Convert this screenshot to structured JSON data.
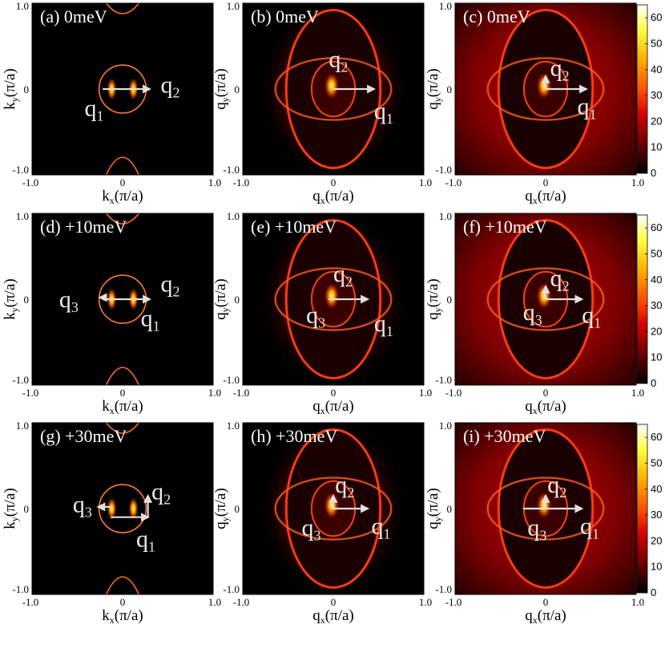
{
  "figure": {
    "colorbar": {
      "ticks": [
        "0",
        "10",
        "20",
        "30",
        "40",
        "50",
        "60"
      ],
      "range": [
        0,
        65
      ],
      "colormap": [
        "#000000",
        "#6b0000",
        "#d40000",
        "#ff5a00",
        "#ffb000",
        "#ffff40",
        "#ffffff"
      ]
    },
    "panels": [
      {
        "id": "a",
        "title": "(a) 0meV",
        "kind": "k",
        "xlabel": "k",
        "xsub": "x",
        "ylabel": "k",
        "ysub": "y",
        "unit": "(π/a)",
        "xticks": [
          "-1.0",
          "0",
          "1.0"
        ],
        "yticks": [
          "1.0",
          "0",
          "-1.0"
        ],
        "arrows": [
          {
            "from": [
              -0.22,
              0.0
            ],
            "to": [
              0.3,
              0.0
            ]
          }
        ],
        "qlabels": [
          {
            "q": "q",
            "sub": "1",
            "at": [
              -0.42,
              -0.22
            ]
          },
          {
            "q": "q",
            "sub": "2",
            "at": [
              0.42,
              0.05
            ]
          }
        ]
      },
      {
        "id": "b",
        "title": "(b) 0meV",
        "kind": "q",
        "xlabel": "q",
        "xsub": "x",
        "ylabel": "q",
        "ysub": "y",
        "unit": "(π/a)",
        "xticks": [
          "-1.0",
          "0",
          "1.0"
        ],
        "yticks": [
          "1.0",
          "0",
          "-1.0"
        ],
        "arrows": [
          {
            "from": [
              0.0,
              0.0
            ],
            "to": [
              0.45,
              0.0
            ]
          }
        ],
        "qlabels": [
          {
            "q": "q",
            "sub": "2",
            "at": [
              -0.05,
              0.35
            ]
          },
          {
            "q": "q",
            "sub": "1",
            "at": [
              0.45,
              -0.25
            ]
          }
        ]
      },
      {
        "id": "c",
        "title": "(c) 0meV",
        "kind": "q",
        "xlabel": "q",
        "xsub": "x",
        "ylabel": "q",
        "ysub": "y",
        "unit": "(π/a)",
        "xticks": [
          "-1.0",
          "0",
          "1.0"
        ],
        "yticks": [
          "1.0",
          "0",
          "-1.0"
        ],
        "arrows": [
          {
            "from": [
              0.0,
              0.0
            ],
            "to": [
              0.45,
              0.0
            ]
          },
          {
            "from": [
              0.0,
              0.0
            ],
            "to": [
              0.0,
              0.15
            ]
          }
        ],
        "qlabels": [
          {
            "q": "q",
            "sub": "2",
            "at": [
              0.05,
              0.25
            ]
          },
          {
            "q": "q",
            "sub": "1",
            "at": [
              0.35,
              -0.2
            ]
          }
        ]
      },
      {
        "id": "d",
        "title": "(d) +10meV",
        "kind": "k",
        "xlabel": "k",
        "xsub": "x",
        "ylabel": "k",
        "ysub": "y",
        "unit": "(π/a)",
        "xticks": [
          "-1.0",
          "0",
          "1.0"
        ],
        "yticks": [
          "1.0",
          "0",
          "-1.0"
        ],
        "arrows": [
          {
            "from": [
              -0.22,
              0.0
            ],
            "to": [
              0.3,
              0.0
            ]
          },
          {
            "from": [
              -0.18,
              0.02
            ],
            "to": [
              -0.25,
              0.02
            ]
          }
        ],
        "qlabels": [
          {
            "q": "q",
            "sub": "3",
            "at": [
              -0.7,
              0.0
            ]
          },
          {
            "q": "q",
            "sub": "2",
            "at": [
              0.42,
              0.18
            ]
          },
          {
            "q": "q",
            "sub": "1",
            "at": [
              0.2,
              -0.22
            ]
          }
        ]
      },
      {
        "id": "e",
        "title": "(e) +10meV",
        "kind": "q",
        "xlabel": "q",
        "xsub": "x",
        "ylabel": "q",
        "ysub": "y",
        "unit": "(π/a)",
        "xticks": [
          "-1.0",
          "0",
          "1.0"
        ],
        "yticks": [
          "1.0",
          "0",
          "-1.0"
        ],
        "arrows": [
          {
            "from": [
              -0.05,
              0.0
            ],
            "to": [
              0.38,
              0.0
            ]
          }
        ],
        "qlabels": [
          {
            "q": "q",
            "sub": "2",
            "at": [
              0.0,
              0.3
            ]
          },
          {
            "q": "q",
            "sub": "3",
            "at": [
              -0.3,
              -0.18
            ]
          },
          {
            "q": "q",
            "sub": "1",
            "at": [
              0.45,
              -0.28
            ]
          }
        ]
      },
      {
        "id": "f",
        "title": "(f) +10meV",
        "kind": "q",
        "xlabel": "q",
        "xsub": "x",
        "ylabel": "q",
        "ysub": "y",
        "unit": "(π/a)",
        "xticks": [
          "-1.0",
          "0",
          "1.0"
        ],
        "yticks": [
          "1.0",
          "0",
          "-1.0"
        ],
        "arrows": [
          {
            "from": [
              0.0,
              0.0
            ],
            "to": [
              0.4,
              0.0
            ]
          },
          {
            "from": [
              0.0,
              0.0
            ],
            "to": [
              0.0,
              0.15
            ]
          }
        ],
        "qlabels": [
          {
            "q": "q",
            "sub": "2",
            "at": [
              0.05,
              0.25
            ]
          },
          {
            "q": "q",
            "sub": "3",
            "at": [
              -0.25,
              -0.15
            ]
          },
          {
            "q": "q",
            "sub": "1",
            "at": [
              0.4,
              -0.18
            ]
          }
        ]
      },
      {
        "id": "g",
        "title": "(g) +30meV",
        "kind": "k",
        "xlabel": "k",
        "xsub": "x",
        "ylabel": "k",
        "ysub": "y",
        "unit": "(π/a)",
        "xticks": [
          "-1.0",
          "0",
          "1.0"
        ],
        "yticks": [
          "1.0",
          "0",
          "-1.0"
        ],
        "arrows": [
          {
            "from": [
              -0.13,
              -0.1
            ],
            "to": [
              0.28,
              -0.1
            ]
          },
          {
            "from": [
              0.28,
              -0.1
            ],
            "to": [
              0.28,
              0.15
            ]
          },
          {
            "from": [
              -0.13,
              0.02
            ],
            "to": [
              -0.27,
              0.02
            ]
          }
        ],
        "qlabels": [
          {
            "q": "q",
            "sub": "3",
            "at": [
              -0.55,
              0.05
            ]
          },
          {
            "q": "q",
            "sub": "2",
            "at": [
              0.32,
              0.2
            ]
          },
          {
            "q": "q",
            "sub": "1",
            "at": [
              0.15,
              -0.35
            ]
          }
        ]
      },
      {
        "id": "h",
        "title": "(h) +30meV",
        "kind": "q",
        "xlabel": "q",
        "xsub": "x",
        "ylabel": "q",
        "ysub": "y",
        "unit": "(π/a)",
        "xticks": [
          "-1.0",
          "0",
          "1.0"
        ],
        "yticks": [
          "1.0",
          "0",
          "-1.0"
        ],
        "arrows": [
          {
            "from": [
              0.0,
              0.0
            ],
            "to": [
              0.38,
              0.0
            ]
          },
          {
            "from": [
              0.0,
              0.0
            ],
            "to": [
              0.0,
              0.15
            ]
          }
        ],
        "qlabels": [
          {
            "q": "q",
            "sub": "2",
            "at": [
              0.02,
              0.28
            ]
          },
          {
            "q": "q",
            "sub": "3",
            "at": [
              -0.35,
              -0.22
            ]
          },
          {
            "q": "q",
            "sub": "1",
            "at": [
              0.42,
              -0.2
            ]
          }
        ]
      },
      {
        "id": "i",
        "title": "(i) +30meV",
        "kind": "q",
        "xlabel": "q",
        "xsub": "x",
        "ylabel": "q",
        "ysub": "y",
        "unit": "(π/a)",
        "xticks": [
          "-1.0",
          "0",
          "1.0"
        ],
        "yticks": [
          "1.0",
          "0",
          "-1.0"
        ],
        "arrows": [
          {
            "from": [
              -0.25,
              0.0
            ],
            "to": [
              0.4,
              0.0
            ]
          },
          {
            "from": [
              0.0,
              0.0
            ],
            "to": [
              0.0,
              0.15
            ]
          }
        ],
        "qlabels": [
          {
            "q": "q",
            "sub": "2",
            "at": [
              0.02,
              0.28
            ]
          },
          {
            "q": "q",
            "sub": "3",
            "at": [
              -0.2,
              -0.22
            ]
          },
          {
            "q": "q",
            "sub": "1",
            "at": [
              0.38,
              -0.2
            ]
          }
        ]
      }
    ]
  },
  "chart_data": {
    "type": "heatmap",
    "panels": [
      "(a) 0meV",
      "(b) 0meV",
      "(c) 0meV",
      "(d) +10meV",
      "(e) +10meV",
      "(f) +10meV",
      "(g) +30meV",
      "(h) +30meV",
      "(i) +30meV"
    ],
    "xlabel": "k_x(π/a) / q_x(π/a)",
    "ylabel": "k_y(π/a) / q_y(π/a)",
    "xlim": [
      -1.0,
      1.0
    ],
    "ylim": [
      -1.0,
      1.0
    ],
    "color_range": [
      0,
      65
    ],
    "colorbar_ticks": [
      0,
      10,
      20,
      30,
      40,
      50,
      60
    ]
  }
}
